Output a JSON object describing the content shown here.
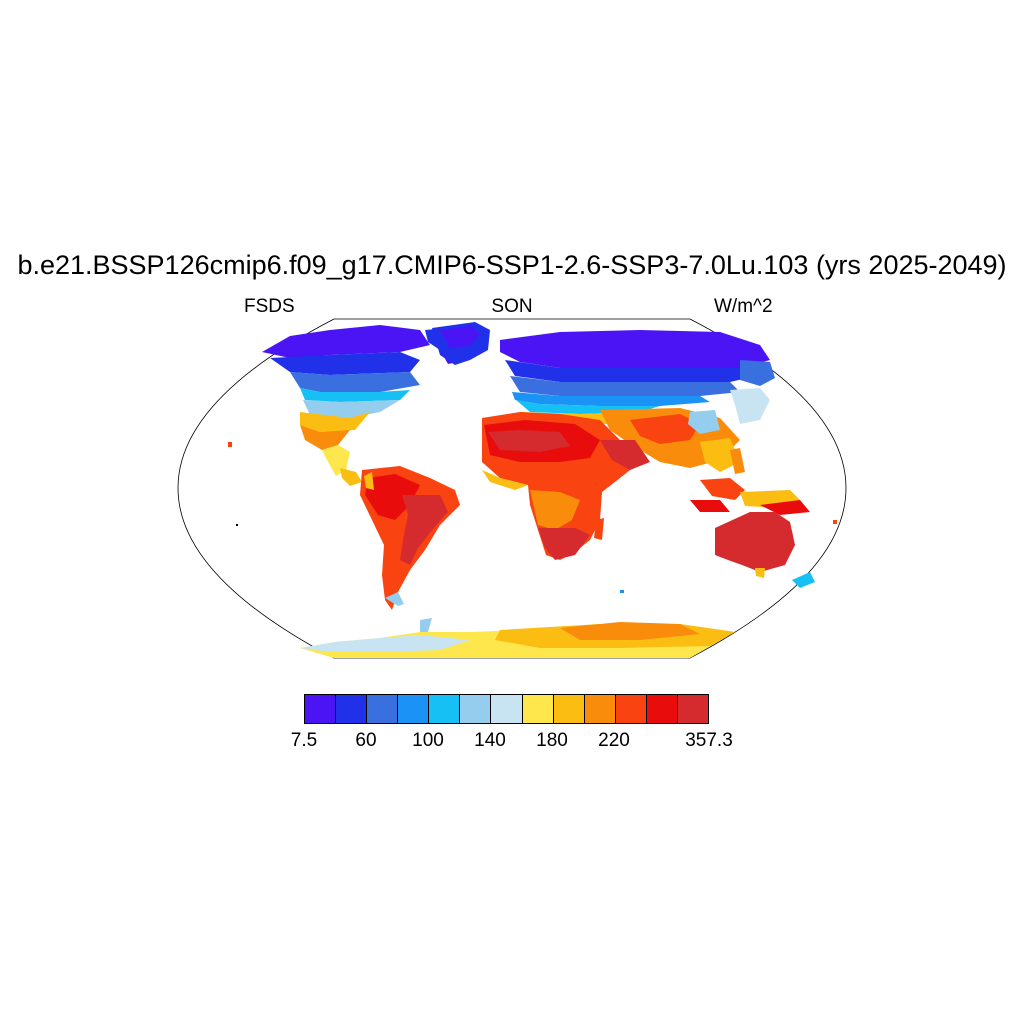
{
  "title": "b.e21.BSSP126cmip6.f09_g17.CMIP6-SSP1-2.6-SSP3-7.0Lu.103 (yrs 2025-2049)",
  "left_label": "FSDS",
  "center_label": "SON",
  "right_label": "W/m^2",
  "colorbar": {
    "colors": [
      "#4a14f5",
      "#2131ea",
      "#3a6fe0",
      "#1b92f5",
      "#16c0f5",
      "#95cdef",
      "#c8e4f3",
      "#fde74c",
      "#fbbd12",
      "#f98c0a",
      "#f94310",
      "#e80d0c",
      "#d52a2e"
    ],
    "labels": [
      "7.5",
      "60",
      "100",
      "140",
      "180",
      "220",
      "357.3"
    ]
  },
  "map": {
    "projection": "Robinson",
    "field": "FSDS",
    "season": "SON",
    "units": "W/m^2"
  }
}
